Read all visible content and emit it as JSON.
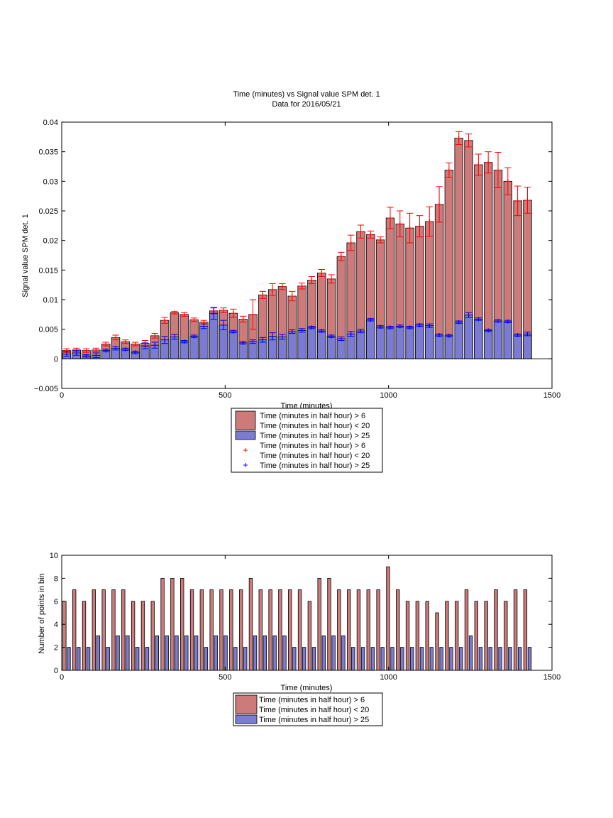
{
  "chart_data": [
    {
      "type": "bar",
      "title": "Time (minutes) vs Signal value SPM det. 1",
      "subtitle": "Data for 2016/05/21",
      "xlabel": "Time (minutes)",
      "ylabel": "Signal value SPM det. 1",
      "xlim": [
        0,
        1500
      ],
      "ylim": [
        -0.005,
        0.04
      ],
      "xticks": [
        0,
        500,
        1000,
        1500
      ],
      "yticks": [
        -0.005,
        0,
        0.005,
        0.01,
        0.015,
        0.02,
        0.025,
        0.03,
        0.035,
        0.04
      ],
      "xtick_labels": [
        "0",
        "500",
        "1000",
        "1500"
      ],
      "ytick_labels": [
        "−0.005",
        "0",
        "0.005",
        "0.01",
        "0.015",
        "0.02",
        "0.025",
        "0.03",
        "0.035",
        "0.04"
      ],
      "legend_position": "below",
      "legend": [
        {
          "label_lines": [
            "Time (minutes in half hour) > 6",
            "Time (minutes in half hour) < 20"
          ],
          "swatch": "bar",
          "color": "#cc7a7a"
        },
        {
          "label_lines": [
            "Time (minutes in half hour) > 25"
          ],
          "swatch": "bar",
          "color": "#7b7bd1"
        },
        {
          "label_lines": [
            "Time (minutes in half hour) > 6",
            "Time (minutes in half hour) < 20"
          ],
          "swatch": "plus",
          "color": "#ff0000"
        },
        {
          "label_lines": [
            "Time (minutes in half hour) > 25"
          ],
          "swatch": "plus",
          "color": "#0000ff"
        }
      ],
      "x": [
        15,
        45,
        75,
        105,
        135,
        165,
        195,
        225,
        255,
        285,
        315,
        345,
        375,
        405,
        435,
        465,
        495,
        525,
        555,
        585,
        615,
        645,
        675,
        705,
        735,
        765,
        795,
        825,
        855,
        885,
        915,
        945,
        975,
        1005,
        1035,
        1065,
        1095,
        1125,
        1155,
        1185,
        1215,
        1245,
        1275,
        1305,
        1335,
        1365,
        1395,
        1425
      ],
      "series": [
        {
          "name": "Time (minutes in half hour) > 6 Time (minutes in half hour) < 20",
          "color": "#cc7a7a",
          "error_color": "#ff0000",
          "values": [
            0.0014,
            0.0015,
            0.0014,
            0.0015,
            0.0025,
            0.0036,
            0.0029,
            0.0025,
            0.0026,
            0.0039,
            0.0065,
            0.0078,
            0.0075,
            0.0066,
            0.0062,
            0.0081,
            0.0082,
            0.0077,
            0.0067,
            0.0075,
            0.0108,
            0.0117,
            0.0122,
            0.0106,
            0.0123,
            0.0133,
            0.0145,
            0.0135,
            0.0173,
            0.0196,
            0.0215,
            0.021,
            0.0201,
            0.0238,
            0.0228,
            0.0221,
            0.0224,
            0.0232,
            0.0261,
            0.0319,
            0.0373,
            0.0369,
            0.0328,
            0.0332,
            0.0319,
            0.03,
            0.0267,
            0.0268
          ],
          "errors": [
            0.0003,
            0.0003,
            0.0003,
            0.0003,
            0.0003,
            0.0004,
            0.0003,
            0.0003,
            0.0005,
            0.0004,
            0.0005,
            0.0002,
            0.0003,
            0.0003,
            0.0003,
            0.0005,
            0.0004,
            0.0007,
            0.0005,
            0.0025,
            0.0006,
            0.001,
            0.0005,
            0.0008,
            0.0005,
            0.0006,
            0.0006,
            0.0007,
            0.0007,
            0.0013,
            0.0011,
            0.0006,
            0.0005,
            0.0018,
            0.0022,
            0.0025,
            0.0018,
            0.0025,
            0.003,
            0.0012,
            0.0011,
            0.0011,
            0.0018,
            0.0018,
            0.003,
            0.0023,
            0.0025,
            0.0022
          ]
        },
        {
          "name": "Time (minutes in half hour) > 25",
          "color": "#7b7bd1",
          "error_color": "#0000ff",
          "values": [
            0.0008,
            0.001,
            0.0005,
            0.0006,
            0.0014,
            0.0018,
            0.0016,
            0.0011,
            0.0022,
            0.0023,
            0.0032,
            0.0037,
            0.0029,
            0.0038,
            0.0055,
            0.0077,
            0.0057,
            0.0046,
            0.0027,
            0.0029,
            0.0032,
            0.0038,
            0.0037,
            0.0046,
            0.0048,
            0.0053,
            0.0047,
            0.0038,
            0.0034,
            0.0042,
            0.0047,
            0.0066,
            0.0054,
            0.0053,
            0.0055,
            0.0053,
            0.0057,
            0.0056,
            0.004,
            0.0039,
            0.0062,
            0.0074,
            0.0067,
            0.0048,
            0.0064,
            0.0063,
            0.004,
            0.0042
          ],
          "errors": [
            0.0004,
            0.0004,
            0.0002,
            0.0004,
            0.0002,
            0.0003,
            0.0002,
            0.0002,
            0.0005,
            0.0005,
            0.0006,
            0.0004,
            0.0002,
            0.0002,
            0.0004,
            0.001,
            0.0008,
            0.0002,
            0.0002,
            0.0003,
            0.0004,
            0.0006,
            0.0004,
            0.0003,
            0.0003,
            0.0002,
            0.0002,
            0.0002,
            0.0003,
            0.0004,
            0.0003,
            0.0002,
            0.0002,
            0.0002,
            0.0002,
            0.0002,
            0.0002,
            0.0003,
            0.0002,
            0.0002,
            0.0002,
            0.0004,
            0.0002,
            0.0002,
            0.0002,
            0.0002,
            0.0002,
            0.0003
          ]
        }
      ]
    },
    {
      "type": "bar",
      "xlabel": "Time (minutes)",
      "ylabel": "Number of points in bin",
      "xlim": [
        0,
        1500
      ],
      "ylim": [
        0,
        10
      ],
      "xticks": [
        0,
        500,
        1000,
        1500
      ],
      "yticks": [
        0,
        2,
        4,
        6,
        8,
        10
      ],
      "xtick_labels": [
        "0",
        "500",
        "1000",
        "1500"
      ],
      "ytick_labels": [
        "0",
        "2",
        "4",
        "6",
        "8",
        "10"
      ],
      "legend_position": "below",
      "legend": [
        {
          "label_lines": [
            "Time (minutes in half hour) > 6",
            "Time (minutes in half hour) < 20"
          ],
          "swatch": "bar",
          "color": "#cc7a7a"
        },
        {
          "label_lines": [
            "Time (minutes in half hour) > 25"
          ],
          "swatch": "bar",
          "color": "#7b7bd1"
        }
      ],
      "x": [
        15,
        45,
        75,
        105,
        135,
        165,
        195,
        225,
        255,
        285,
        315,
        345,
        375,
        405,
        435,
        465,
        495,
        525,
        555,
        585,
        615,
        645,
        675,
        705,
        735,
        765,
        795,
        825,
        855,
        885,
        915,
        945,
        975,
        1005,
        1035,
        1065,
        1095,
        1125,
        1155,
        1185,
        1215,
        1245,
        1275,
        1305,
        1335,
        1365,
        1395,
        1425
      ],
      "series": [
        {
          "name": "Time (minutes in half hour) > 6 Time (minutes in half hour) < 20",
          "color": "#cc7a7a",
          "values": [
            6,
            7,
            6,
            7,
            7,
            7,
            7,
            6,
            6,
            6,
            8,
            8,
            8,
            7,
            7,
            7,
            7,
            7,
            7,
            8,
            7,
            7,
            7,
            7,
            7,
            6,
            8,
            8,
            7,
            7,
            7,
            7,
            7,
            9,
            7,
            6,
            6,
            6,
            5,
            6,
            6,
            7,
            6,
            6,
            7,
            6,
            7,
            7
          ]
        },
        {
          "name": "Time (minutes in half hour) > 25",
          "color": "#7b7bd1",
          "values": [
            2,
            2,
            2,
            3,
            2,
            3,
            3,
            2,
            2,
            3,
            3,
            3,
            3,
            3,
            2,
            3,
            3,
            2,
            2,
            3,
            3,
            3,
            3,
            2,
            2,
            2,
            3,
            3,
            3,
            2,
            2,
            2,
            2,
            2,
            2,
            2,
            2,
            2,
            2,
            2,
            2,
            3,
            2,
            2,
            2,
            2,
            2,
            2
          ]
        }
      ]
    }
  ]
}
